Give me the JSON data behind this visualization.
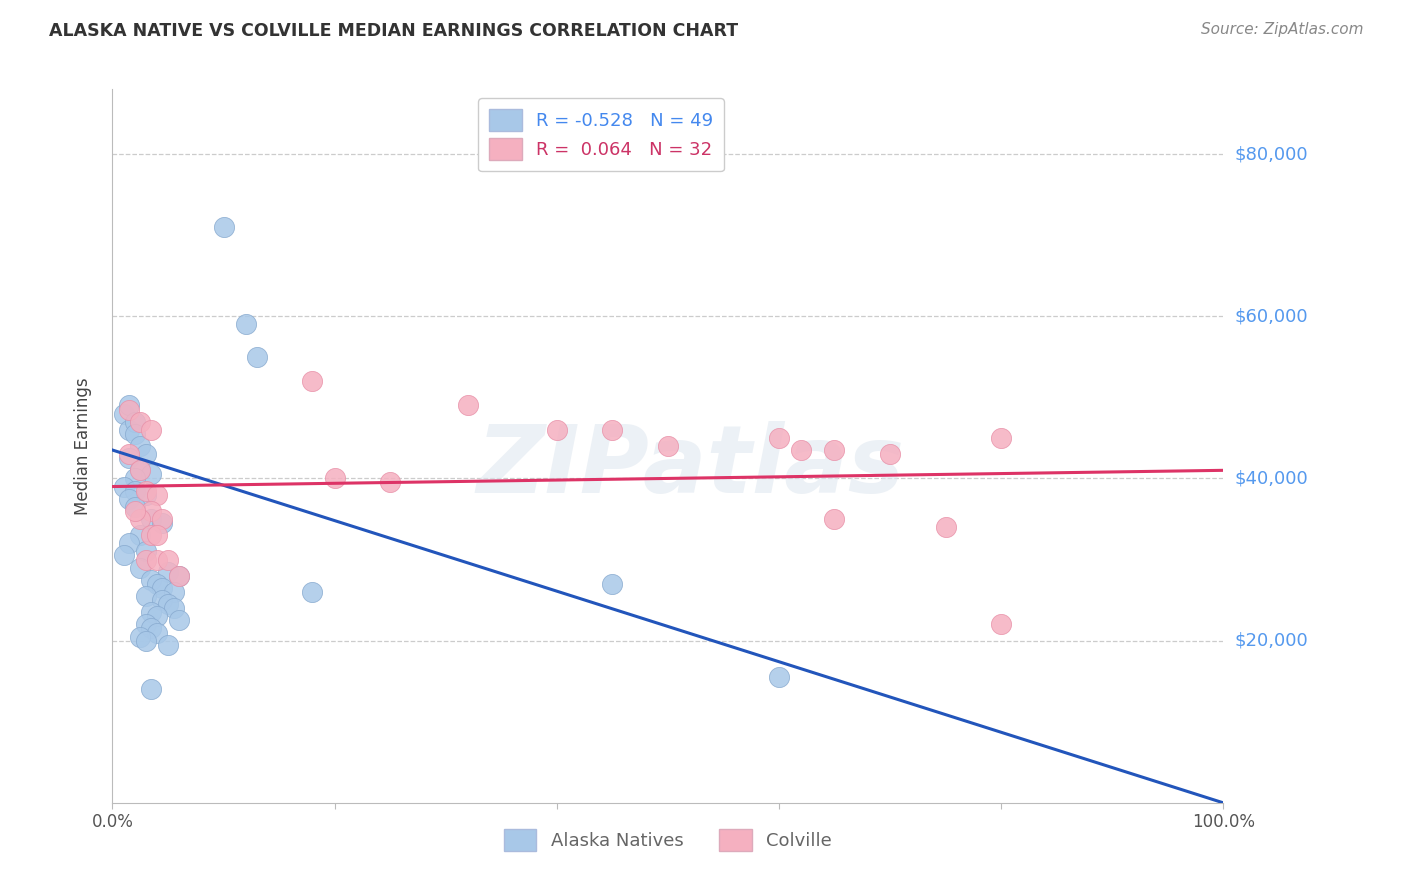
{
  "title": "ALASKA NATIVE VS COLVILLE MEDIAN EARNINGS CORRELATION CHART",
  "source": "Source: ZipAtlas.com",
  "ylabel": "Median Earnings",
  "watermark": "ZIPatlas",
  "blue_R": "-0.528",
  "blue_N": "49",
  "pink_R": "0.064",
  "pink_N": "32",
  "blue_color": "#a8c8e8",
  "blue_edge": "#88aacf",
  "pink_color": "#f5b0c0",
  "pink_edge": "#e890a8",
  "blue_line_color": "#2255bb",
  "pink_line_color": "#dd3366",
  "blue_points_x": [
    1.0,
    1.5,
    1.5,
    2.0,
    2.0,
    2.5,
    3.0,
    1.5,
    2.5,
    3.5,
    2.0,
    1.0,
    2.0,
    3.0,
    1.5,
    2.0,
    3.5,
    4.5,
    2.5,
    1.5,
    3.0,
    1.0,
    2.5,
    5.0,
    6.0,
    3.5,
    4.0,
    4.5,
    5.5,
    3.0,
    4.5,
    5.0,
    5.5,
    3.5,
    4.0,
    6.0,
    3.0,
    3.5,
    4.0,
    2.5,
    3.0,
    18.0,
    5.0,
    3.5,
    10.0,
    12.0,
    13.0,
    45.0,
    60.0
  ],
  "blue_points_y": [
    48000,
    46000,
    49000,
    47000,
    45500,
    44000,
    43000,
    42500,
    41000,
    40500,
    40000,
    39000,
    38500,
    38000,
    37500,
    36500,
    35000,
    34500,
    33000,
    32000,
    31000,
    30500,
    29000,
    28500,
    28000,
    27500,
    27000,
    26500,
    26000,
    25500,
    25000,
    24500,
    24000,
    23500,
    23000,
    22500,
    22000,
    21500,
    21000,
    20500,
    20000,
    26000,
    19500,
    14000,
    71000,
    59000,
    55000,
    27000,
    15500
  ],
  "pink_points_x": [
    1.5,
    2.5,
    3.5,
    1.5,
    2.5,
    3.0,
    4.0,
    3.5,
    2.5,
    4.5,
    18.0,
    32.0,
    20.0,
    25.0,
    40.0,
    45.0,
    50.0,
    60.0,
    62.0,
    65.0,
    70.0,
    80.0,
    65.0,
    75.0,
    80.0,
    3.5,
    4.0,
    3.0,
    4.0,
    5.0,
    6.0,
    2.0
  ],
  "pink_points_y": [
    48500,
    47000,
    46000,
    43000,
    41000,
    38500,
    38000,
    36000,
    35000,
    35000,
    52000,
    49000,
    40000,
    39500,
    46000,
    46000,
    44000,
    45000,
    43500,
    43500,
    43000,
    45000,
    35000,
    34000,
    22000,
    33000,
    33000,
    30000,
    30000,
    30000,
    28000,
    36000
  ],
  "blue_line_x": [
    0,
    100
  ],
  "blue_line_y": [
    43500,
    0
  ],
  "pink_line_x": [
    0,
    100
  ],
  "pink_line_y": [
    39000,
    41000
  ],
  "yticks": [
    20000,
    40000,
    60000,
    80000
  ],
  "ytick_labels": [
    "$20,000",
    "$40,000",
    "$60,000",
    "$80,000"
  ],
  "ylim": [
    0,
    88000
  ],
  "xlim": [
    0,
    100
  ],
  "figsize": [
    14.06,
    8.92
  ],
  "dpi": 100
}
